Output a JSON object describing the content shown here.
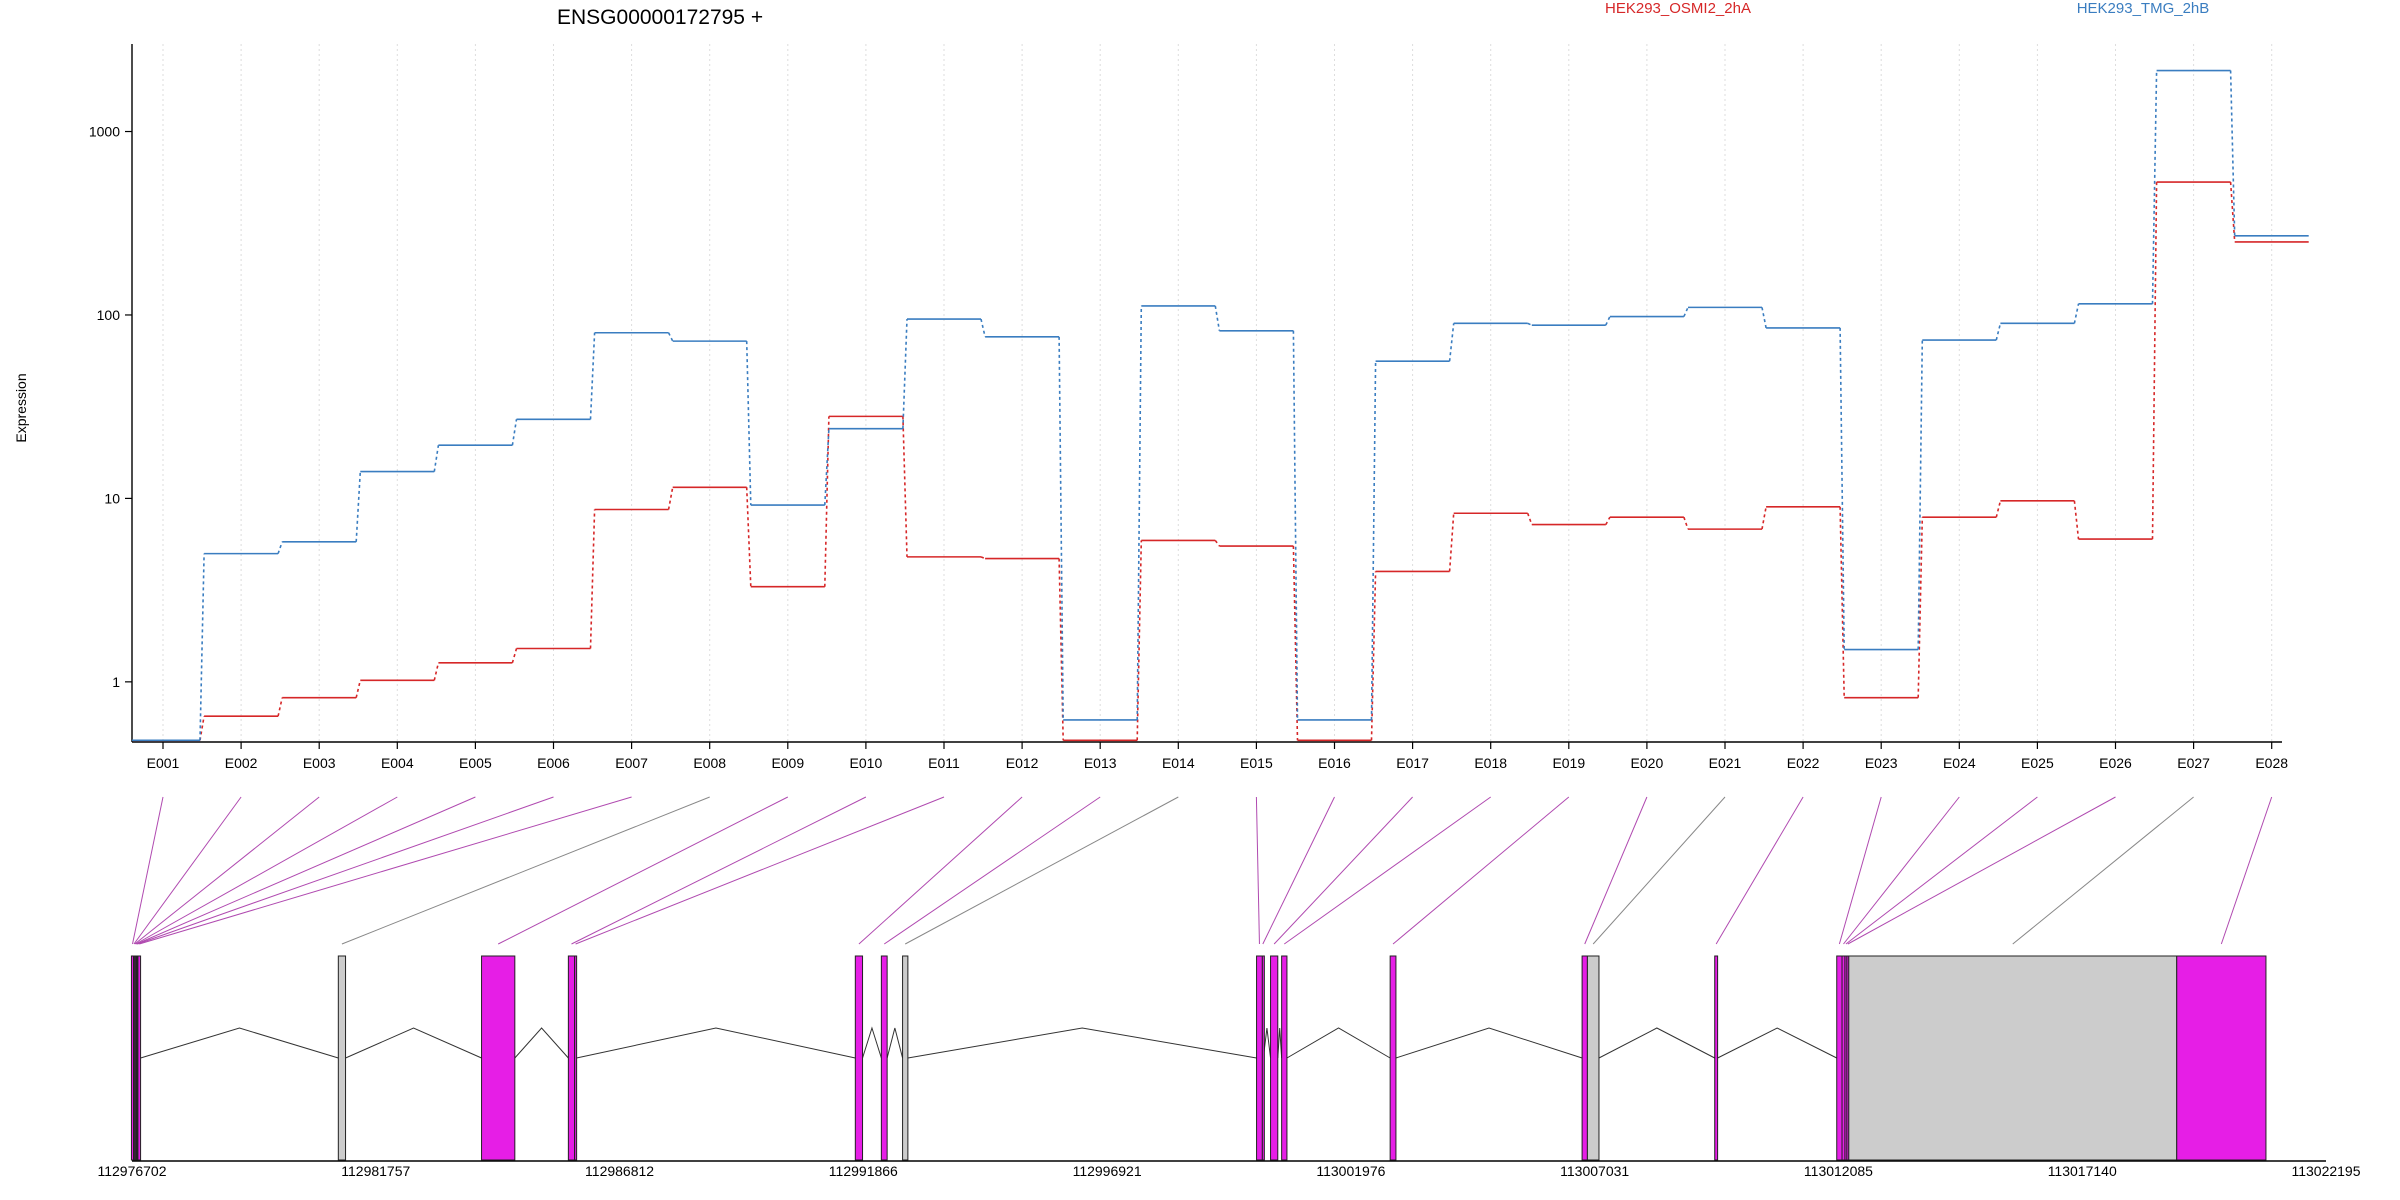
{
  "chart_data": {
    "type": "line",
    "title": "ENSG00000172795 +",
    "ylabel": "Expression",
    "yscale": "log",
    "ylim": [
      0.47,
      3000
    ],
    "yticks": [
      1,
      10,
      100,
      1000
    ],
    "ytick_labels": [
      "1",
      "10",
      "100",
      "1000"
    ],
    "categories": [
      "E001",
      "E002",
      "E003",
      "E004",
      "E005",
      "E006",
      "E007",
      "E008",
      "E009",
      "E010",
      "E011",
      "E012",
      "E013",
      "E014",
      "E015",
      "E016",
      "E017",
      "E018",
      "E019",
      "E020",
      "E021",
      "E022",
      "E023",
      "E024",
      "E025",
      "E026",
      "E027",
      "E028"
    ],
    "grid": "vertical dotted",
    "legend_position": "top",
    "series": [
      {
        "name": "HEK293_OSMI2_2hA",
        "color": "#d62728",
        "values": [
          0.48,
          0.65,
          0.82,
          1.02,
          1.27,
          1.52,
          8.7,
          11.5,
          3.3,
          28.0,
          4.8,
          4.7,
          0.48,
          5.9,
          5.5,
          0.48,
          4.0,
          8.3,
          7.2,
          7.9,
          6.8,
          9.0,
          0.82,
          7.9,
          9.7,
          6.0,
          530,
          250
        ]
      },
      {
        "name": "HEK293_TMG_2hB",
        "color": "#3a7dc0",
        "values": [
          0.48,
          5.0,
          5.8,
          14.0,
          19.5,
          27.0,
          80,
          72,
          9.2,
          24.0,
          95,
          76,
          0.62,
          112,
          82,
          0.62,
          56,
          90,
          88,
          98,
          110,
          85,
          1.5,
          73,
          90,
          115,
          2150,
          270
        ]
      }
    ]
  },
  "gene_model": {
    "coordinate_labels": [
      "112976702",
      "112981757",
      "112986812",
      "112991866",
      "112996921",
      "113001976",
      "113007031",
      "113012085",
      "113017140",
      "113022195"
    ],
    "exons": [
      {
        "id": "E001",
        "color": "#e61ee6",
        "start": 112976690,
        "end": 112976735
      },
      {
        "id": "E002",
        "color": "#e61ee6",
        "start": 112976735,
        "end": 112976750
      },
      {
        "id": "E003",
        "color": "#e61ee6",
        "start": 112976750,
        "end": 112976770
      },
      {
        "id": "E004",
        "color": "#e61ee6",
        "start": 112976770,
        "end": 112976790
      },
      {
        "id": "E005",
        "color": "#e61ee6",
        "start": 112976790,
        "end": 112976805
      },
      {
        "id": "E006",
        "color": "#e61ee6",
        "start": 112976805,
        "end": 112976825
      },
      {
        "id": "E007",
        "color": "#e61ee6",
        "start": 112976825,
        "end": 112976880
      },
      {
        "id": "E008",
        "color": "#cccccc",
        "start": 112980980,
        "end": 112981130
      },
      {
        "id": "E009",
        "color": "#e61ee6",
        "start": 112983950,
        "end": 112984640
      },
      {
        "id": "E010",
        "color": "#e61ee6",
        "start": 112985750,
        "end": 112985880
      },
      {
        "id": "E011",
        "color": "#e61ee6",
        "start": 112985880,
        "end": 112985920
      },
      {
        "id": "E012",
        "color": "#e61ee6",
        "start": 112991700,
        "end": 112991850
      },
      {
        "id": "E013",
        "color": "#e61ee6",
        "start": 112992240,
        "end": 112992360
      },
      {
        "id": "E014",
        "color": "#cccccc",
        "start": 112992680,
        "end": 112992790
      },
      {
        "id": "E015",
        "color": "#e61ee6",
        "start": 113000020,
        "end": 113000140
      },
      {
        "id": "E016",
        "color": "#e61ee6",
        "start": 113000140,
        "end": 113000160
      },
      {
        "id": "E017",
        "color": "#e61ee6",
        "start": 113000310,
        "end": 113000460
      },
      {
        "id": "E018",
        "color": "#e61ee6",
        "start": 113000540,
        "end": 113000650
      },
      {
        "id": "E019",
        "color": "#e61ee6",
        "start": 113002790,
        "end": 113002910
      },
      {
        "id": "E020",
        "color": "#e61ee6",
        "start": 113006770,
        "end": 113006880
      },
      {
        "id": "E021",
        "color": "#cccccc",
        "start": 113006880,
        "end": 113007120
      },
      {
        "id": "E022",
        "color": "#e61ee6",
        "start": 113009520,
        "end": 113009580
      },
      {
        "id": "E023",
        "color": "#e61ee6",
        "start": 113012050,
        "end": 113012160
      },
      {
        "id": "E024",
        "color": "#e61ee6",
        "start": 113012160,
        "end": 113012220
      },
      {
        "id": "E025",
        "color": "#e61ee6",
        "start": 113012220,
        "end": 113012260
      },
      {
        "id": "E026",
        "color": "#e61ee6",
        "start": 113012260,
        "end": 113012300
      },
      {
        "id": "E027",
        "color": "#cccccc",
        "start": 113012300,
        "end": 113019100
      },
      {
        "id": "E028",
        "color": "#e61ee6",
        "start": 113019100,
        "end": 113020950
      }
    ]
  }
}
